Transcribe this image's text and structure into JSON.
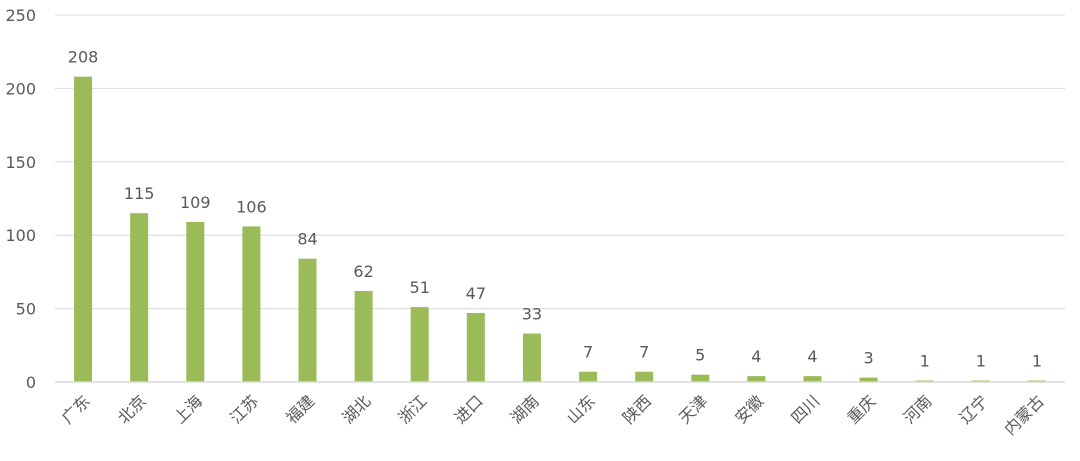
{
  "chart_data": {
    "type": "bar",
    "title": "",
    "xlabel": "",
    "ylabel": "",
    "categories": [
      "广东",
      "北京",
      "上海",
      "江苏",
      "福建",
      "湖北",
      "浙江",
      "进口",
      "湖南",
      "山东",
      "陕西",
      "天津",
      "安徽",
      "四川",
      "重庆",
      "河南",
      "辽宁",
      "内蒙古"
    ],
    "values": [
      208,
      115,
      109,
      106,
      84,
      62,
      51,
      47,
      33,
      7,
      7,
      5,
      4,
      4,
      3,
      1,
      1,
      1
    ],
    "ylim": [
      0,
      250
    ],
    "yticks": [
      0,
      50,
      100,
      150,
      200,
      250
    ],
    "grid": true,
    "legend": "none",
    "data_labels": true,
    "colors": {
      "bar": "#9BBB59",
      "grid": "#D9D9D9",
      "text": "#595959"
    }
  }
}
